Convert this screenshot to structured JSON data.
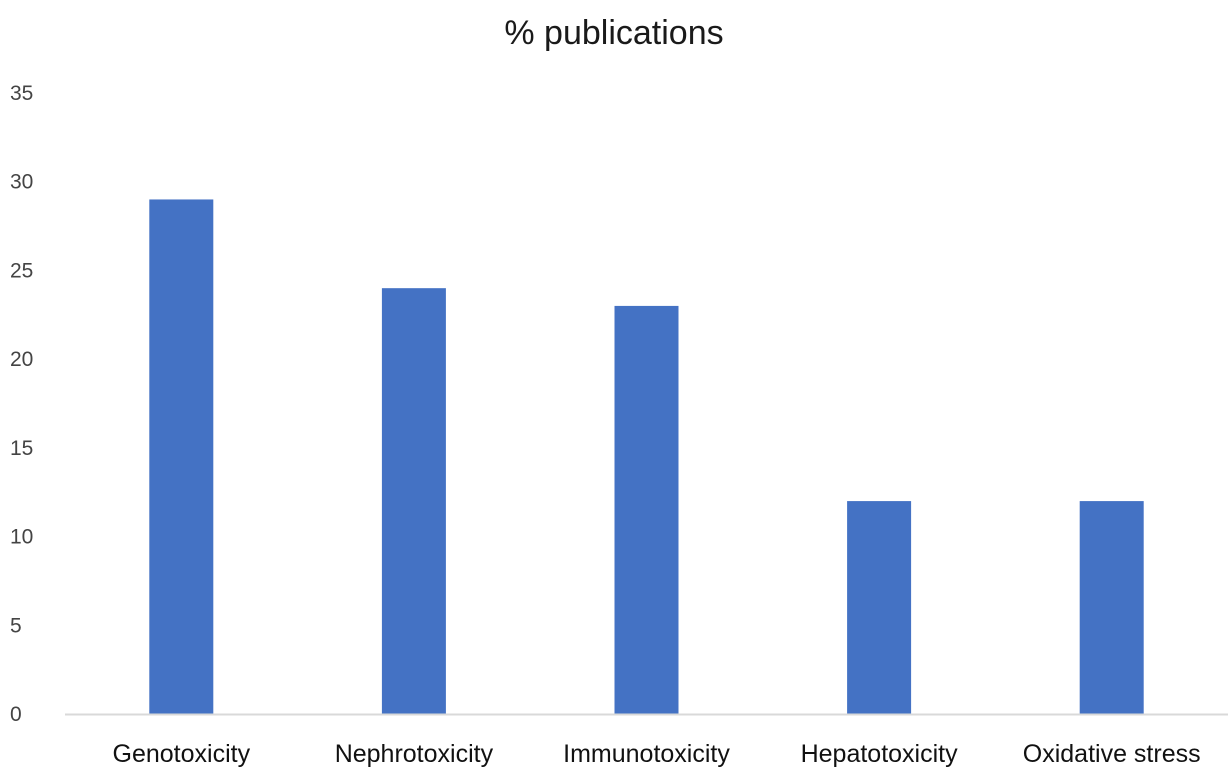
{
  "chart_data": {
    "type": "bar",
    "title": "% publications",
    "categories": [
      "Genotoxicity",
      "Nephrotoxicity",
      "Immunotoxicity",
      "Hepatotoxicity",
      "Oxidative stress"
    ],
    "values": [
      29,
      24,
      23,
      12,
      12
    ],
    "yticks": [
      "0",
      "5",
      "10",
      "15",
      "20",
      "25",
      "30",
      "35"
    ],
    "ylim": [
      0,
      35
    ],
    "xlabel": "",
    "ylabel": "",
    "grid": false,
    "legend": "none",
    "bar_color": "#4472c4",
    "axis_color": "#d9d9d9"
  }
}
